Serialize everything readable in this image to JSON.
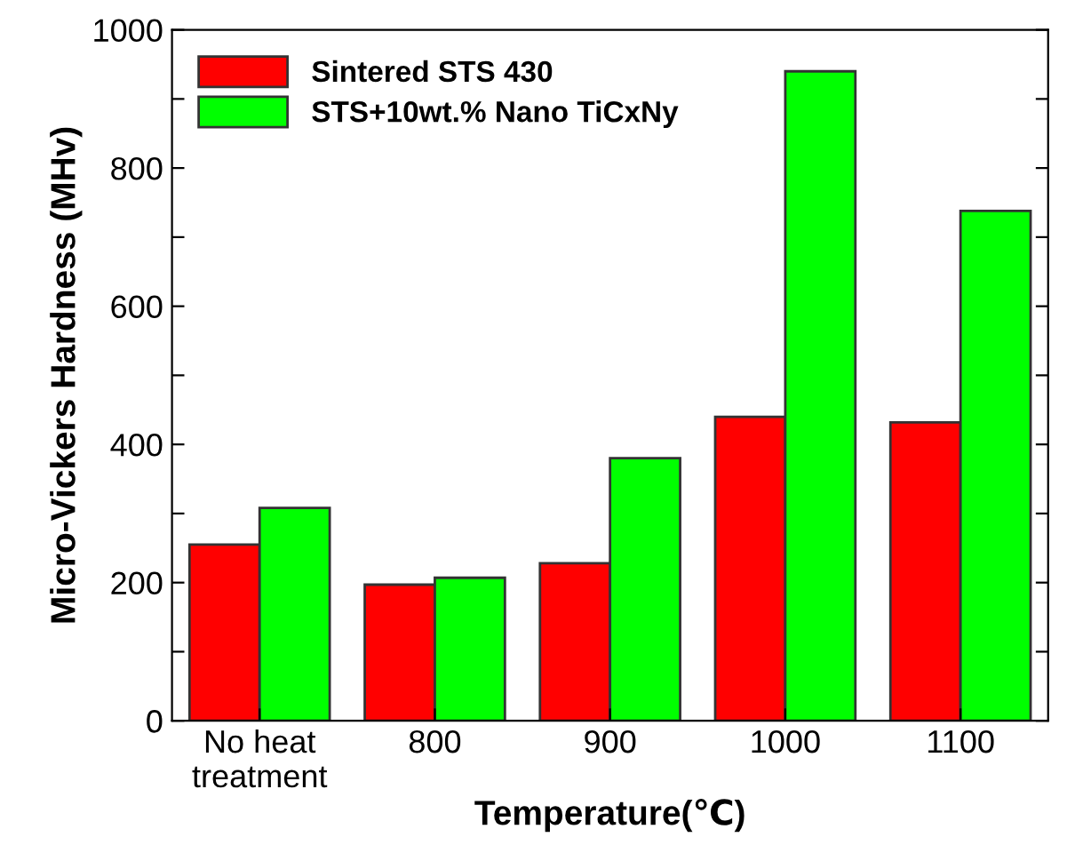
{
  "chart_data": {
    "type": "bar",
    "xlabel": "Temperature(℃)",
    "ylabel": "Micro-Vickers Hardness (MHv)",
    "categories": [
      "No heat\ntreatment",
      "800",
      "900",
      "1000",
      "1100"
    ],
    "series": [
      {
        "name": "Sintered STS 430",
        "color": "#ff0000",
        "values": [
          255,
          197,
          228,
          440,
          432
        ]
      },
      {
        "name": "STS+10wt.% Nano TiCxNy",
        "color": "#00ff00",
        "values": [
          308,
          207,
          380,
          940,
          738
        ]
      }
    ],
    "ylim": [
      0,
      1000
    ],
    "yticks": [
      0,
      {
        "value": 100,
        "label": null
      },
      200,
      {
        "value": 300,
        "label": null
      },
      400,
      {
        "value": 500,
        "label": null
      },
      600,
      {
        "value": 700,
        "label": null
      },
      800,
      {
        "value": 900,
        "label": null
      },
      1000
    ],
    "legend": "top left",
    "grid": false
  }
}
